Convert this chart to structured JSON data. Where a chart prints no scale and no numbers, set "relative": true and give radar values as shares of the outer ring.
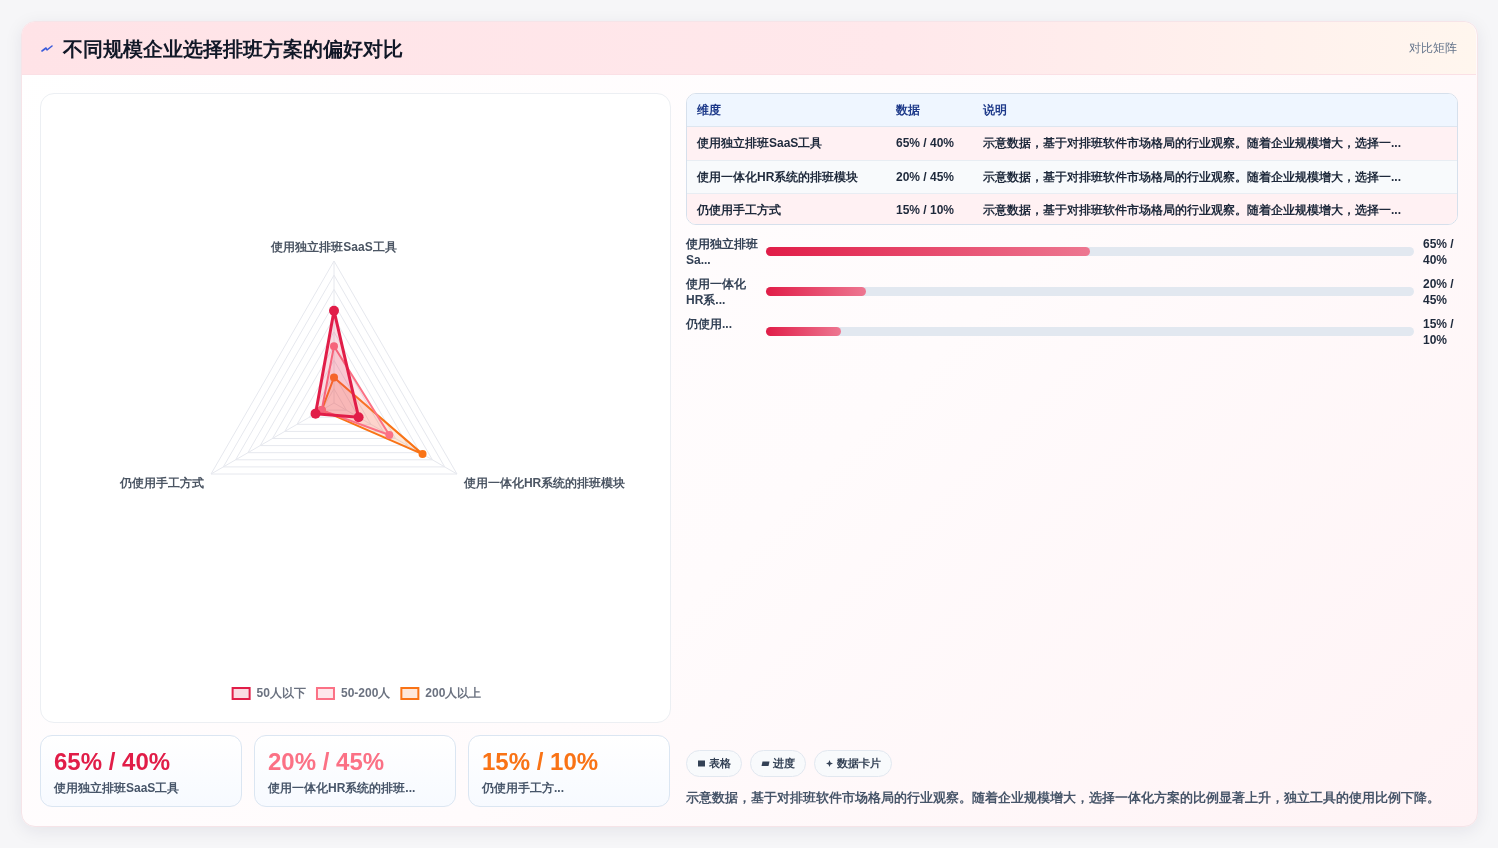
{
  "chart_data": [
    {
      "type": "other",
      "title": "不同规模企业选择排班方案的偏好对比",
      "subtitle": "对比矩阵"
    },
    {
      "type": "radar",
      "categories": [
        "使用独立排班SaaS工具",
        "使用一体化HR系统的排班模块",
        "仍使用手工方式"
      ],
      "relative": true,
      "grid": true,
      "marker": "circle",
      "legend": "bottom",
      "series": [
        {
          "name": "50人以下",
          "color": "#e11d48",
          "values": [
            0.65,
            0.2,
            0.15
          ]
        },
        {
          "name": "50-200人",
          "color": "#fb7185",
          "values": [
            0.4,
            0.45,
            0.1
          ]
        },
        {
          "name": "200人以上",
          "color": "#f97316",
          "values": [
            0.18,
            0.72,
            0.1
          ]
        }
      ]
    },
    {
      "type": "other",
      "categories": [
        "维度",
        "数据",
        "说明"
      ],
      "y_categories": [
        "使用独立排班SaaS工具",
        "使用一体化HR系统的排班模块",
        "仍使用手工方式"
      ],
      "cell_labels": [
        [
          "65% / 40%",
          "示意数据，基于对排班软件市场格局的行业观察。随着企业规模增大，选择一..."
        ],
        [
          "20% / 45%",
          "示意数据，基于对排班软件市场格局的行业观察。随着企业规模增大，选择一..."
        ],
        [
          "15% / 10%",
          "示意数据，基于对排班软件市场格局的行业观察。随着企业规模增大，选择一..."
        ]
      ]
    },
    {
      "type": "bar",
      "orientation": "horizontal",
      "categories": [
        "使用独立排班Sa...",
        "使用一体化HR系...",
        "仍使用..."
      ],
      "values": [
        65,
        20,
        15
      ],
      "xlim": [
        0,
        130
      ],
      "value_labels": [
        "65% / 40%",
        "20% / 45%",
        "15% / 10%"
      ],
      "color": "#e11d48"
    },
    {
      "type": "other",
      "categories": [
        "使用独立排班SaaS工具",
        "使用一体化HR系统的排班...",
        "仍使用手工方..."
      ],
      "value_labels": [
        "65% / 40%",
        "20% / 45%",
        "15% / 10%"
      ]
    },
    {
      "type": "other",
      "categories": [
        "表格",
        "进度",
        "数据卡片"
      ],
      "annotations": [
        "示意数据，基于对排班软件市场格局的行业观察。随着企业规模增大，选择一体化方案的比例显著上升，独立工具的使用比例下降。"
      ]
    }
  ]
}
